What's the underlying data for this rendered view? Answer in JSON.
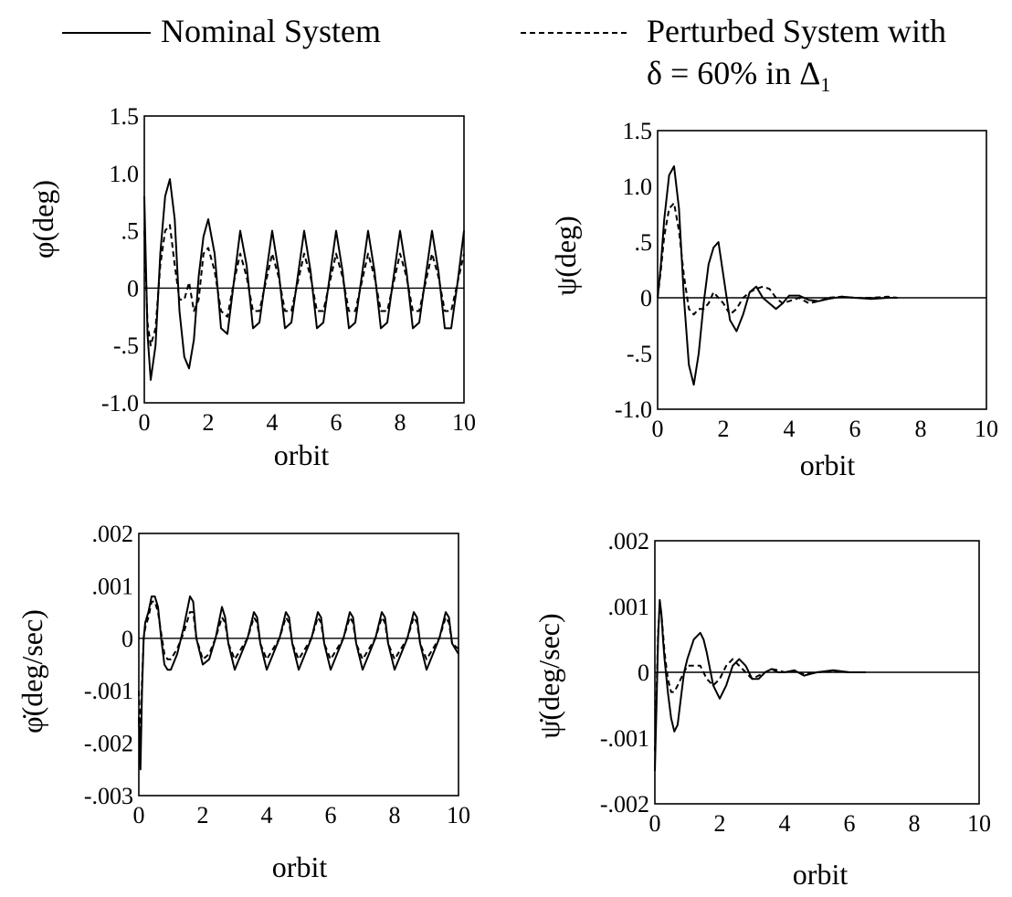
{
  "legend": {
    "nominal_label": "Nominal System",
    "perturbed_label_line1": "Perturbed System with",
    "perturbed_label_line2": "δ = 60% in  Δ",
    "perturbed_label_sub": "1"
  },
  "chart_data": [
    {
      "type": "line",
      "xlabel": "orbit",
      "ylabel": "φ(deg)",
      "xlim": [
        0,
        10
      ],
      "ylim": [
        -1.0,
        1.5
      ],
      "x_ticks": [
        0,
        2,
        4,
        6,
        8,
        10
      ],
      "x_tick_labels": [
        "0",
        "2",
        "4",
        "6",
        "8",
        "10"
      ],
      "y_ticks": [
        1.5,
        1.0,
        0.5,
        0,
        -0.5,
        -1.0
      ],
      "y_tick_labels": [
        "1.5",
        "1.0",
        ".5",
        "0",
        "-.5",
        "-1.0"
      ],
      "grid": false,
      "series": [
        {
          "style": "solid",
          "x": [
            0,
            0.1,
            0.2,
            0.35,
            0.5,
            0.65,
            0.8,
            0.95,
            1.1,
            1.25,
            1.4,
            1.55,
            1.7,
            1.85,
            2.0,
            2.2,
            2.4,
            2.6,
            2.8,
            3.0,
            3.2,
            3.4,
            3.6,
            3.8,
            4.0,
            4.2,
            4.4,
            4.6,
            4.8,
            5.0,
            5.2,
            5.4,
            5.6,
            5.8,
            6.0,
            6.2,
            6.4,
            6.6,
            6.8,
            7.0,
            7.2,
            7.4,
            7.6,
            7.8,
            8.0,
            8.2,
            8.4,
            8.6,
            8.8,
            9.0,
            9.2,
            9.4,
            9.6,
            9.8,
            10.0
          ],
          "y": [
            0.8,
            -0.4,
            -0.8,
            -0.5,
            0.3,
            0.8,
            0.95,
            0.6,
            -0.2,
            -0.6,
            -0.7,
            -0.45,
            0.1,
            0.45,
            0.6,
            0.3,
            -0.35,
            -0.4,
            0.05,
            0.5,
            0.2,
            -0.35,
            -0.3,
            0.1,
            0.5,
            0.15,
            -0.35,
            -0.3,
            0.1,
            0.5,
            0.15,
            -0.35,
            -0.3,
            0.1,
            0.5,
            0.15,
            -0.35,
            -0.3,
            0.1,
            0.5,
            0.15,
            -0.35,
            -0.3,
            0.1,
            0.5,
            0.15,
            -0.35,
            -0.3,
            0.1,
            0.5,
            0.15,
            -0.35,
            -0.35,
            0.05,
            0.5
          ]
        },
        {
          "style": "dashed",
          "x": [
            0,
            0.1,
            0.2,
            0.35,
            0.5,
            0.65,
            0.8,
            0.95,
            1.1,
            1.25,
            1.4,
            1.55,
            1.7,
            1.85,
            2.0,
            2.2,
            2.4,
            2.6,
            2.8,
            3.0,
            3.2,
            3.4,
            3.6,
            3.8,
            4.0,
            4.2,
            4.4,
            4.6,
            4.8,
            5.0,
            5.2,
            5.4,
            5.6,
            5.8,
            6.0,
            6.2,
            6.4,
            6.6,
            6.8,
            7.0,
            7.2,
            7.4,
            7.6,
            7.8,
            8.0,
            8.2,
            8.4,
            8.6,
            8.8,
            9.0,
            9.2,
            9.4,
            9.6,
            9.8,
            10.0
          ],
          "y": [
            0.5,
            -0.3,
            -0.5,
            -0.35,
            0.2,
            0.5,
            0.55,
            0.2,
            -0.1,
            -0.1,
            0.05,
            -0.2,
            -0.1,
            0.3,
            0.35,
            0.15,
            -0.2,
            -0.25,
            0.05,
            0.3,
            0.1,
            -0.2,
            -0.2,
            0.05,
            0.3,
            0.1,
            -0.2,
            -0.2,
            0.05,
            0.3,
            0.1,
            -0.2,
            -0.2,
            0.05,
            0.3,
            0.1,
            -0.2,
            -0.2,
            0.05,
            0.3,
            0.1,
            -0.2,
            -0.2,
            0.05,
            0.3,
            0.1,
            -0.2,
            -0.2,
            0.05,
            0.3,
            0.1,
            -0.2,
            -0.2,
            0.05,
            0.3
          ]
        }
      ]
    },
    {
      "type": "line",
      "xlabel": "orbit",
      "ylabel": "ψ(deg)",
      "xlim": [
        0,
        10
      ],
      "ylim": [
        -1.0,
        1.5
      ],
      "x_ticks": [
        0,
        2,
        4,
        6,
        8,
        10
      ],
      "x_tick_labels": [
        "0",
        "2",
        "4",
        "6",
        "8",
        "10"
      ],
      "y_ticks": [
        1.5,
        1.0,
        0.5,
        0,
        -0.5,
        -1.0
      ],
      "y_tick_labels": [
        "1.5",
        "1.0",
        ".5",
        "0",
        "-.5",
        "-1.0"
      ],
      "grid": false,
      "series": [
        {
          "style": "solid",
          "x": [
            0,
            0.1,
            0.2,
            0.35,
            0.5,
            0.65,
            0.8,
            0.95,
            1.1,
            1.25,
            1.4,
            1.55,
            1.7,
            1.85,
            2.0,
            2.2,
            2.4,
            2.6,
            2.8,
            3.0,
            3.2,
            3.4,
            3.6,
            3.8,
            4.0,
            4.3,
            4.6,
            4.9,
            5.2,
            5.6,
            6.0,
            6.5,
            7.0,
            7.3
          ],
          "y": [
            0.0,
            0.3,
            0.7,
            1.1,
            1.18,
            0.8,
            0.0,
            -0.6,
            -0.78,
            -0.5,
            -0.05,
            0.3,
            0.45,
            0.5,
            0.2,
            -0.2,
            -0.3,
            -0.15,
            0.05,
            0.1,
            0.0,
            -0.05,
            -0.1,
            -0.05,
            0.02,
            0.02,
            -0.02,
            -0.03,
            -0.01,
            0.01,
            0.0,
            -0.01,
            0.0,
            0.0
          ]
        },
        {
          "style": "dashed",
          "x": [
            0,
            0.1,
            0.2,
            0.35,
            0.5,
            0.65,
            0.8,
            0.95,
            1.1,
            1.25,
            1.4,
            1.55,
            1.7,
            1.85,
            2.0,
            2.2,
            2.4,
            2.6,
            2.8,
            3.0,
            3.2,
            3.4,
            3.6,
            3.8,
            4.0,
            4.3,
            4.6,
            4.9,
            5.2,
            5.6,
            6.0,
            6.5,
            7.0,
            7.3
          ],
          "y": [
            0.0,
            0.25,
            0.55,
            0.8,
            0.85,
            0.6,
            0.2,
            -0.1,
            -0.15,
            -0.1,
            -0.1,
            -0.05,
            0.05,
            0.0,
            -0.05,
            -0.15,
            -0.1,
            0.0,
            0.05,
            0.08,
            0.1,
            0.08,
            0.0,
            -0.05,
            -0.03,
            0.0,
            -0.05,
            -0.03,
            0.0,
            0.01,
            0.0,
            0.0,
            0.01,
            0.0
          ]
        }
      ]
    },
    {
      "type": "line",
      "xlabel": "orbit",
      "ylabel": "φ̇(deg/sec)",
      "xlim": [
        0,
        10
      ],
      "ylim": [
        -0.003,
        0.002
      ],
      "x_ticks": [
        0,
        2,
        4,
        6,
        8,
        10
      ],
      "x_tick_labels": [
        "0",
        "2",
        "4",
        "6",
        "8",
        "10"
      ],
      "y_ticks": [
        0.002,
        0.001,
        0,
        -0.001,
        -0.002,
        -0.003
      ],
      "y_tick_labels": [
        ".002",
        ".001",
        "0",
        "-.001",
        "-.002",
        "-.003"
      ],
      "grid": false,
      "series": [
        {
          "style": "solid",
          "x": [
            0,
            0.05,
            0.1,
            0.15,
            0.2,
            0.3,
            0.4,
            0.5,
            0.6,
            0.7,
            0.8,
            0.9,
            1.0,
            1.2,
            1.4,
            1.6,
            1.7,
            1.8,
            2.0,
            2.2,
            2.4,
            2.6,
            2.7,
            2.8,
            3.0,
            3.2,
            3.4,
            3.6,
            3.7,
            3.8,
            4.0,
            4.2,
            4.4,
            4.6,
            4.7,
            4.8,
            5.0,
            5.2,
            5.4,
            5.6,
            5.7,
            5.8,
            6.0,
            6.2,
            6.4,
            6.6,
            6.7,
            6.8,
            7.0,
            7.2,
            7.4,
            7.6,
            7.7,
            7.8,
            8.0,
            8.2,
            8.4,
            8.6,
            8.7,
            8.8,
            9.0,
            9.2,
            9.4,
            9.6,
            9.7,
            9.8,
            10.0
          ],
          "y": [
            -0.0015,
            -0.0025,
            -0.001,
            0.0,
            0.0003,
            0.0005,
            0.0008,
            0.0008,
            0.0006,
            0.0,
            -0.0005,
            -0.0006,
            -0.0006,
            -0.0003,
            0.0002,
            0.0008,
            0.0007,
            0.0,
            -0.0005,
            -0.0004,
            0.0,
            0.0006,
            0.0004,
            -0.0001,
            -0.0006,
            -0.0003,
            0.0,
            0.0005,
            0.0004,
            -0.0001,
            -0.0006,
            -0.0003,
            0.0,
            0.0005,
            0.0004,
            -0.0001,
            -0.0006,
            -0.0003,
            0.0,
            0.0005,
            0.0004,
            -0.0001,
            -0.0006,
            -0.0003,
            0.0,
            0.0005,
            0.0004,
            -0.0001,
            -0.0006,
            -0.0003,
            0.0,
            0.0005,
            0.0004,
            -0.0001,
            -0.0006,
            -0.0003,
            0.0,
            0.0005,
            0.0004,
            -0.0001,
            -0.0006,
            -0.0003,
            0.0,
            0.0005,
            0.0004,
            -0.0001,
            -0.0003
          ]
        },
        {
          "style": "dashed",
          "x": [
            0,
            0.05,
            0.1,
            0.15,
            0.2,
            0.3,
            0.4,
            0.5,
            0.6,
            0.7,
            0.8,
            0.9,
            1.0,
            1.2,
            1.4,
            1.6,
            1.7,
            1.8,
            2.0,
            2.2,
            2.4,
            2.6,
            2.7,
            2.8,
            3.0,
            3.2,
            3.4,
            3.6,
            3.7,
            3.8,
            4.0,
            4.2,
            4.4,
            4.6,
            4.7,
            4.8,
            5.0,
            5.2,
            5.4,
            5.6,
            5.7,
            5.8,
            6.0,
            6.2,
            6.4,
            6.6,
            6.7,
            6.8,
            7.0,
            7.2,
            7.4,
            7.6,
            7.7,
            7.8,
            8.0,
            8.2,
            8.4,
            8.6,
            8.7,
            8.8,
            9.0,
            9.2,
            9.4,
            9.6,
            9.7,
            9.8,
            10.0
          ],
          "y": [
            -0.001,
            -0.002,
            -0.0008,
            0.0,
            0.0002,
            0.0004,
            0.0007,
            0.0007,
            0.0005,
            0.0001,
            -0.0003,
            -0.0004,
            -0.0004,
            -0.0002,
            0.0001,
            0.0005,
            0.0005,
            0.0,
            -0.0004,
            -0.0003,
            0.0,
            0.0004,
            0.0003,
            -0.0001,
            -0.0004,
            -0.0002,
            0.0,
            0.0004,
            0.0003,
            -0.0001,
            -0.0004,
            -0.0002,
            0.0,
            0.0004,
            0.0003,
            -0.0001,
            -0.0004,
            -0.0002,
            0.0,
            0.0004,
            0.0003,
            -0.0001,
            -0.0004,
            -0.0002,
            0.0,
            0.0004,
            0.0003,
            -0.0001,
            -0.0004,
            -0.0002,
            0.0,
            0.0004,
            0.0003,
            -0.0001,
            -0.0004,
            -0.0002,
            0.0,
            0.0004,
            0.0003,
            -0.0001,
            -0.0004,
            -0.0002,
            0.0,
            0.0004,
            0.0003,
            -0.0001,
            -0.0002
          ]
        }
      ]
    },
    {
      "type": "line",
      "xlabel": "orbit",
      "ylabel": "ψ̇(deg/sec)",
      "xlim": [
        0,
        10
      ],
      "ylim": [
        -0.002,
        0.002
      ],
      "x_ticks": [
        0,
        2,
        4,
        6,
        8,
        10
      ],
      "x_tick_labels": [
        "0",
        "2",
        "4",
        "6",
        "8",
        "10"
      ],
      "y_ticks": [
        0.002,
        0.001,
        0,
        -0.001,
        -0.002
      ],
      "y_tick_labels": [
        ".002",
        ".001",
        "0",
        "-.001",
        "-.002"
      ],
      "grid": false,
      "series": [
        {
          "style": "solid",
          "x": [
            0,
            0.05,
            0.1,
            0.15,
            0.2,
            0.25,
            0.3,
            0.4,
            0.5,
            0.6,
            0.7,
            0.8,
            0.9,
            1.0,
            1.2,
            1.4,
            1.5,
            1.6,
            1.8,
            2.0,
            2.2,
            2.4,
            2.6,
            2.8,
            3.0,
            3.2,
            3.4,
            3.6,
            3.8,
            4.0,
            4.3,
            4.6,
            5.0,
            5.5,
            6.0,
            6.5
          ],
          "y": [
            -0.0015,
            -0.0005,
            0.0005,
            0.0011,
            0.0009,
            0.0005,
            0.0002,
            -0.0003,
            -0.0007,
            -0.0009,
            -0.0008,
            -0.0004,
            0.0,
            0.0002,
            0.0005,
            0.0006,
            0.0005,
            0.0003,
            -0.0002,
            -0.0004,
            -0.0002,
            0.0001,
            0.0002,
            0.0001,
            -0.0001,
            -0.0001,
            0.0,
            5e-05,
            0.0,
            0.0,
            3e-05,
            -5e-05,
            0.0,
            3e-05,
            0.0,
            0.0
          ]
        },
        {
          "style": "dashed",
          "x": [
            0,
            0.05,
            0.1,
            0.15,
            0.2,
            0.25,
            0.3,
            0.4,
            0.5,
            0.6,
            0.7,
            0.8,
            0.9,
            1.0,
            1.2,
            1.4,
            1.5,
            1.6,
            1.8,
            2.0,
            2.2,
            2.4,
            2.6,
            2.8,
            3.0,
            3.2,
            3.4,
            3.6,
            3.8,
            4.0,
            4.3,
            4.6,
            5.0,
            5.5,
            6.0,
            6.5
          ],
          "y": [
            -0.0012,
            -0.0003,
            0.0006,
            0.001,
            0.0009,
            0.0006,
            0.0003,
            -0.0001,
            -0.0003,
            -0.0003,
            -0.0002,
            -0.0001,
            0.0,
            0.0001,
            0.0001,
            0.0001,
            0.0,
            -0.0001,
            -0.0002,
            -0.0001,
            0.0001,
            0.0002,
            0.0001,
            0.0,
            -0.0001,
            -5e-05,
            0.0,
            5e-05,
            3e-05,
            0.0,
            2e-05,
            -3e-05,
            0.0,
            2e-05,
            0.0,
            0.0
          ]
        }
      ]
    }
  ]
}
